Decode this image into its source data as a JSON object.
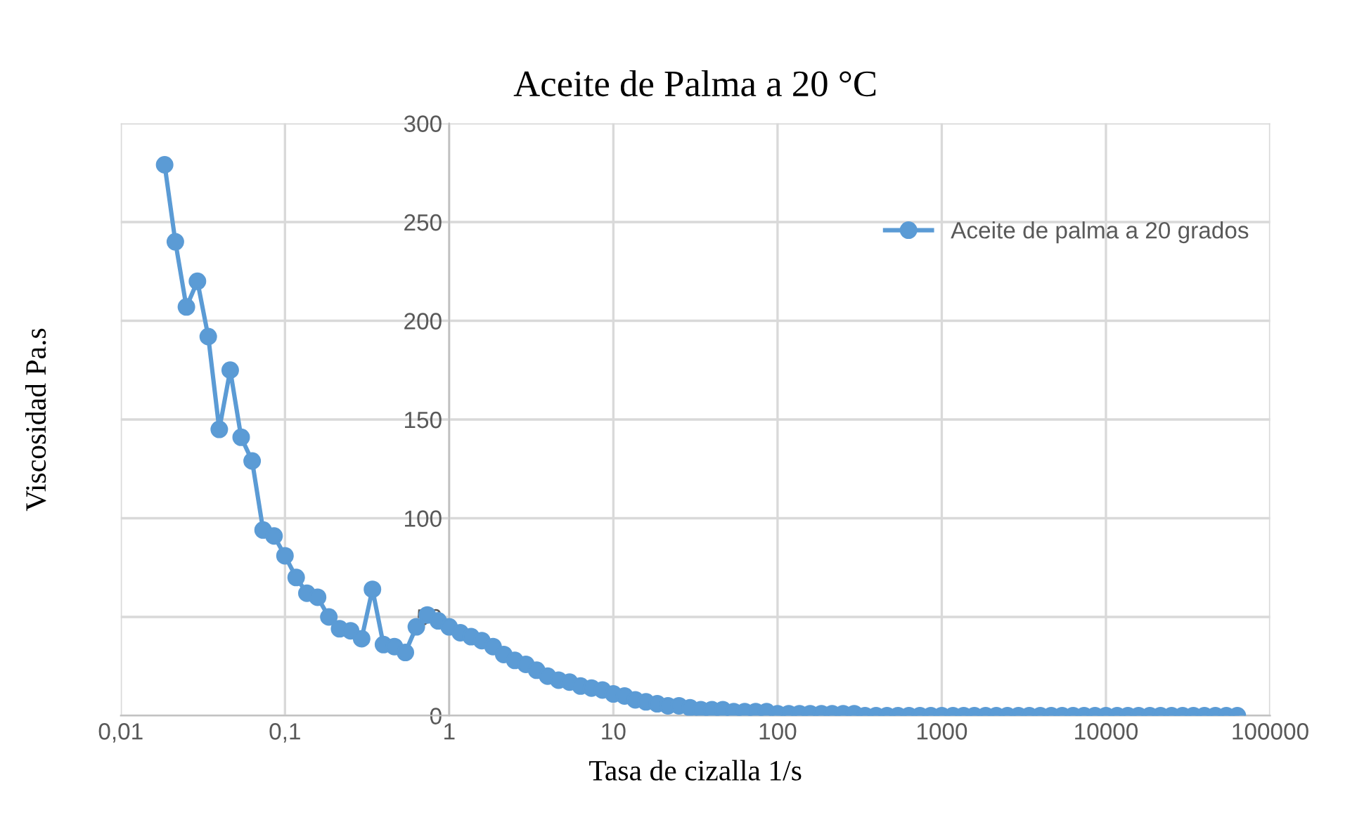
{
  "chart_data": {
    "type": "line",
    "title": "Aceite de Palma a 20 °C",
    "xlabel": "Tasa de cizalla 1/s",
    "ylabel": "Viscosidad Pa.s",
    "log": "x",
    "xlim": [
      0.01,
      100000
    ],
    "xticks": [
      {
        "value": 0.01,
        "label": "0,01"
      },
      {
        "value": 0.1,
        "label": "0,1"
      },
      1,
      10,
      100,
      1000,
      10000,
      100000
    ],
    "ylim": [
      0,
      300
    ],
    "yticks": [
      0,
      50,
      100,
      150,
      200,
      250,
      300
    ],
    "grid": true,
    "legend": "top right",
    "marker": "circle",
    "line_style": "solid",
    "series": [
      {
        "name": "Aceite de palma a 20 grados",
        "color": "#5b9bd5",
        "x": [
          0.0185,
          0.0215,
          0.0251,
          0.0293,
          0.0341,
          0.0398,
          0.0464,
          0.0541,
          0.0631,
          0.0736,
          0.0858,
          0.1,
          0.117,
          0.136,
          0.158,
          0.185,
          0.215,
          0.251,
          0.293,
          0.341,
          0.398,
          0.464,
          0.541,
          0.631,
          0.736,
          0.858,
          1,
          1.17,
          1.36,
          1.58,
          1.85,
          2.15,
          2.51,
          2.93,
          3.41,
          3.98,
          4.64,
          5.41,
          6.31,
          7.36,
          8.58,
          10,
          11.7,
          13.6,
          15.8,
          18.5,
          21.5,
          25.1,
          29.3,
          34.1,
          39.8,
          46.4,
          54.1,
          63.1,
          73.6,
          85.8,
          100,
          117,
          136,
          158,
          185,
          215,
          251,
          293,
          341,
          398,
          464,
          541,
          631,
          736,
          858,
          1000,
          1170,
          1360,
          1580,
          1850,
          2150,
          2510,
          2930,
          3410,
          3980,
          4640,
          5410,
          6310,
          7360,
          8580,
          10000,
          11700,
          13600,
          15800,
          18500,
          21500,
          25100,
          29300,
          34100,
          39800,
          46400,
          54100,
          63100
        ],
        "values": [
          279,
          240,
          207,
          220,
          192,
          145,
          175,
          141,
          129,
          94,
          91,
          81,
          70,
          62,
          60,
          50,
          44,
          43,
          39,
          64,
          36,
          35,
          32,
          45,
          51,
          48,
          45,
          42,
          40,
          38,
          35,
          31,
          28,
          26,
          23,
          20,
          18,
          17,
          15,
          14,
          13,
          11,
          10,
          8,
          7,
          6,
          5,
          5,
          4,
          3,
          3,
          3,
          2,
          2,
          2,
          2,
          1,
          1,
          1,
          1,
          1,
          1,
          1,
          1,
          0,
          0,
          0,
          0,
          0,
          0,
          0,
          0,
          0,
          0,
          0,
          0,
          0,
          0,
          0,
          0,
          0,
          0,
          0,
          0,
          0,
          0,
          0,
          0,
          0,
          0,
          0,
          0,
          0,
          0,
          0,
          0,
          0,
          0,
          0
        ]
      }
    ]
  }
}
